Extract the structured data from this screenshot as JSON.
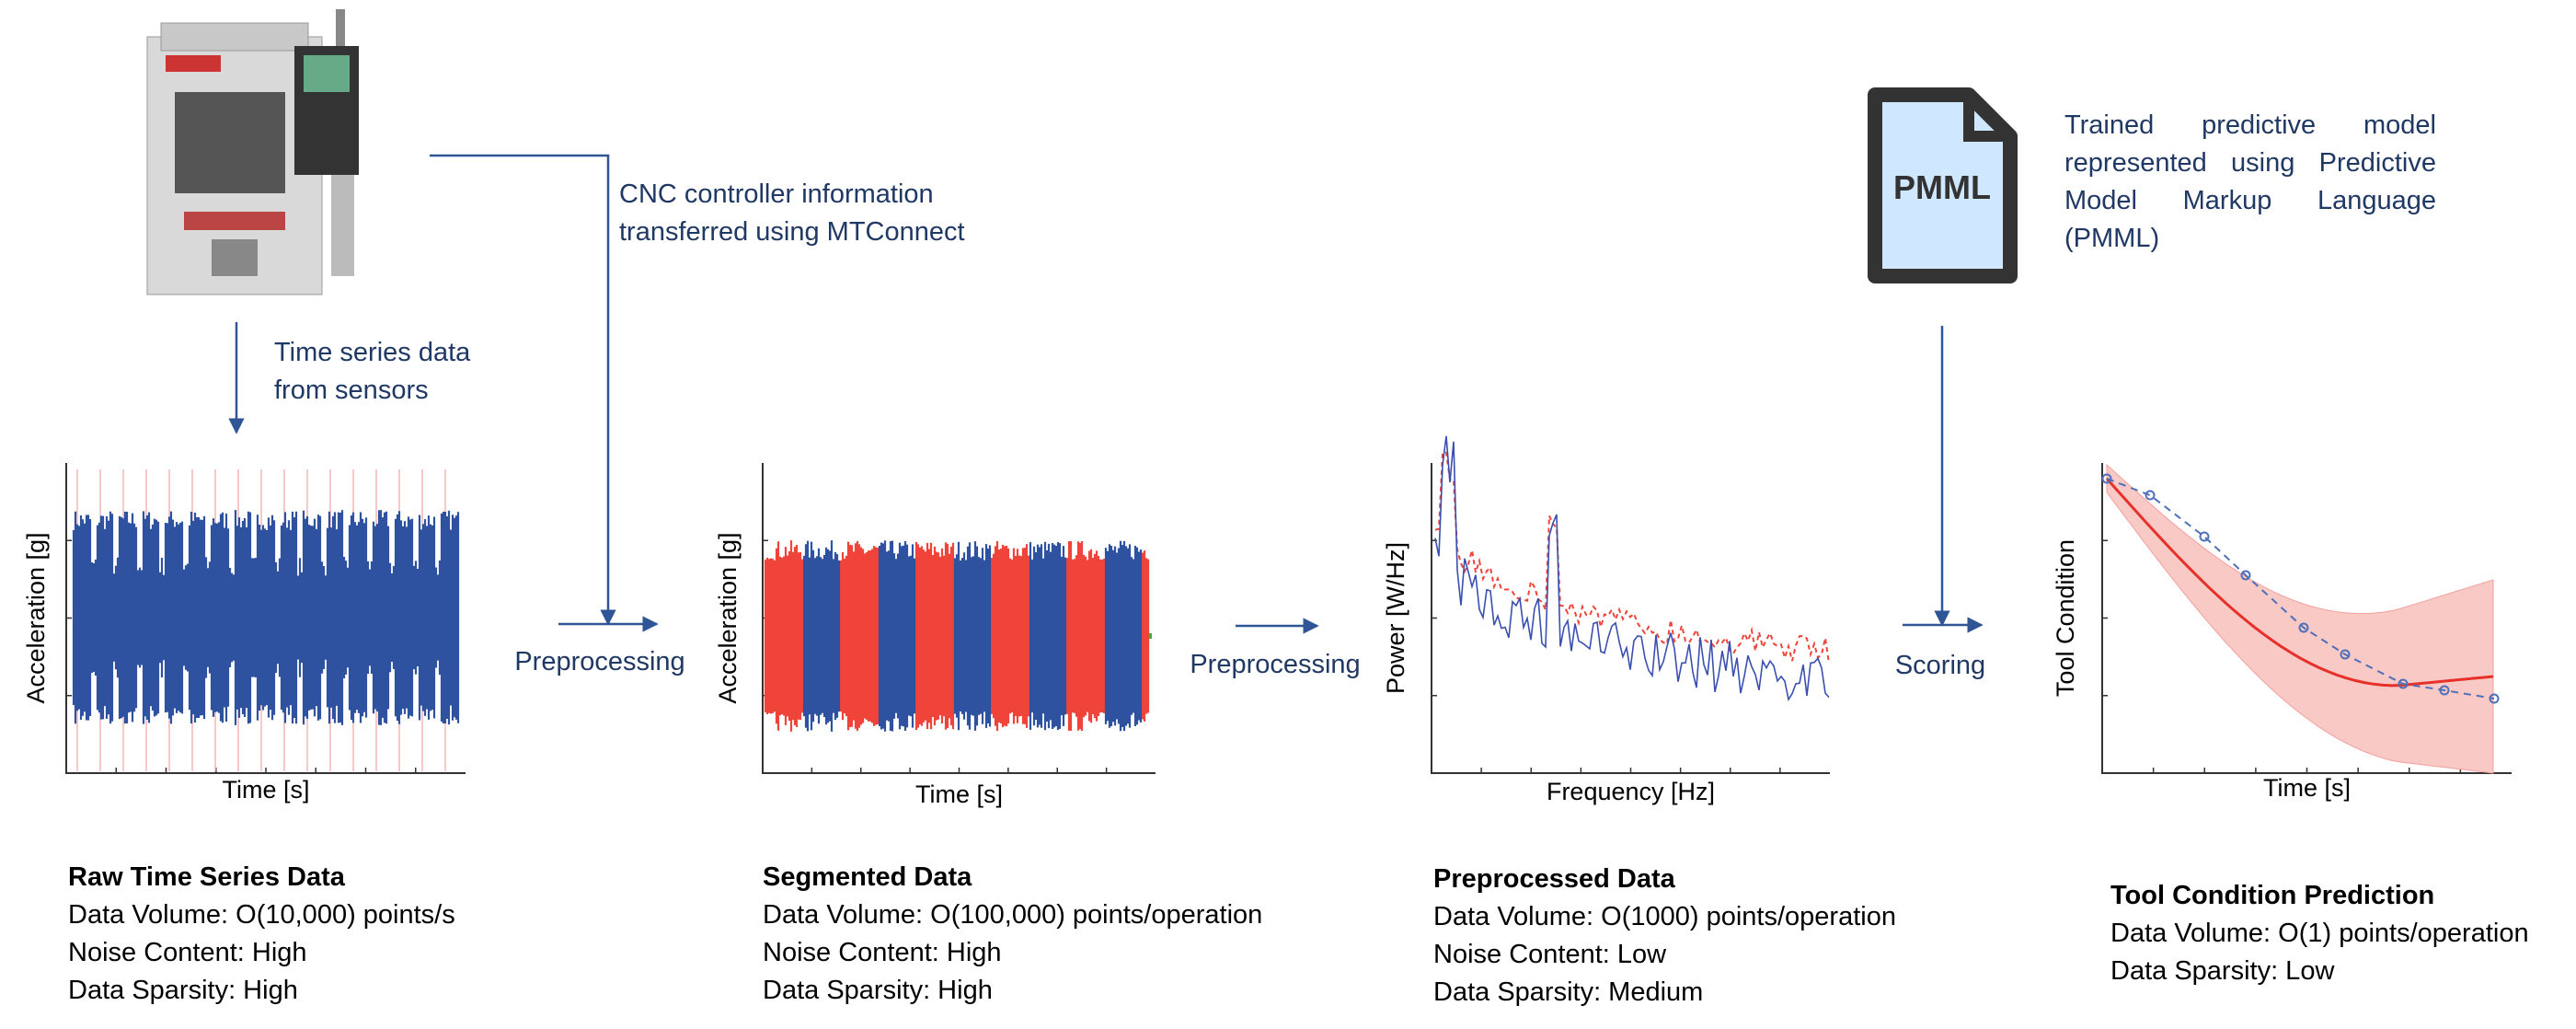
{
  "top": {
    "cnc_note": [
      "CNC controller information",
      "transferred using MTConnect"
    ],
    "sensor_note": [
      "Time series data",
      "from sensors"
    ],
    "pmml_icon": "PMML",
    "pmml_note": "Trained predictive model represented using Predictive Model Markup Language (PMML)"
  },
  "steps": [
    "Preprocessing",
    "Preprocessing",
    "Scoring"
  ],
  "plots": [
    {
      "y_label": "Acceleration [g]",
      "x_label": "Time [s]"
    },
    {
      "y_label": "Acceleration [g]",
      "x_label": "Time [s]"
    },
    {
      "y_label": "Power [W/Hz]",
      "x_label": "Frequency [Hz]"
    },
    {
      "y_label": "Tool Condition",
      "x_label": "Time [s]"
    }
  ],
  "panels": [
    {
      "title": "Raw Time Series Data",
      "lines": [
        "Data Volume: O(10,000) points/s",
        "Noise Content: High",
        "Data Sparsity: High"
      ]
    },
    {
      "title": "Segmented Data",
      "lines": [
        "Data Volume: O(100,000) points/operation",
        "Noise Content: High",
        "Data Sparsity: High"
      ]
    },
    {
      "title": "Preprocessed Data",
      "lines": [
        "Data Volume: O(1000) points/operation",
        "Noise Content: Low",
        "Data Sparsity: Medium"
      ]
    },
    {
      "title": "Tool Condition Prediction",
      "lines": [
        "Data Volume: O(1) points/operation",
        "Data Sparsity: Low"
      ]
    }
  ]
}
